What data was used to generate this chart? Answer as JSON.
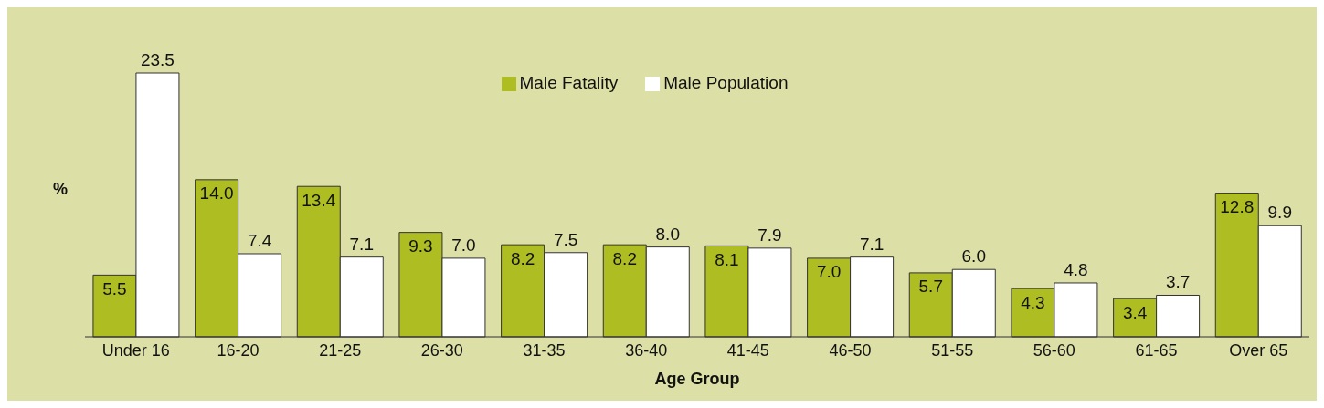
{
  "chart_data": {
    "type": "bar",
    "xlabel": "Age Group",
    "ylabel": "%",
    "categories": [
      "Under 16",
      "16-20",
      "21-25",
      "26-30",
      "31-35",
      "36-40",
      "41-45",
      "46-50",
      "51-55",
      "56-60",
      "61-65",
      "Over 65"
    ],
    "series": [
      {
        "name": "Male Fatality",
        "color": "#aebd22",
        "values": [
          5.5,
          14.0,
          13.4,
          9.3,
          8.2,
          8.2,
          8.1,
          7.0,
          5.7,
          4.3,
          3.4,
          12.8
        ],
        "value_labels": [
          "5.5",
          "14.0",
          "13.4",
          "9.3",
          "8.2",
          "8.2",
          "8.1",
          "7.0",
          "5.7",
          "4.3",
          "3.4",
          "12.8"
        ]
      },
      {
        "name": "Male Population",
        "color": "#ffffff",
        "values": [
          23.5,
          7.4,
          7.1,
          7.0,
          7.5,
          8.0,
          7.9,
          7.1,
          6.0,
          4.8,
          3.7,
          9.9
        ],
        "value_labels": [
          "23.5",
          "7.4",
          "7.1",
          "7.0",
          "7.5",
          "8.0",
          "7.9",
          "7.1",
          "6.0",
          "4.8",
          "3.7",
          "9.9"
        ]
      }
    ],
    "legend": "top",
    "grid": false
  }
}
